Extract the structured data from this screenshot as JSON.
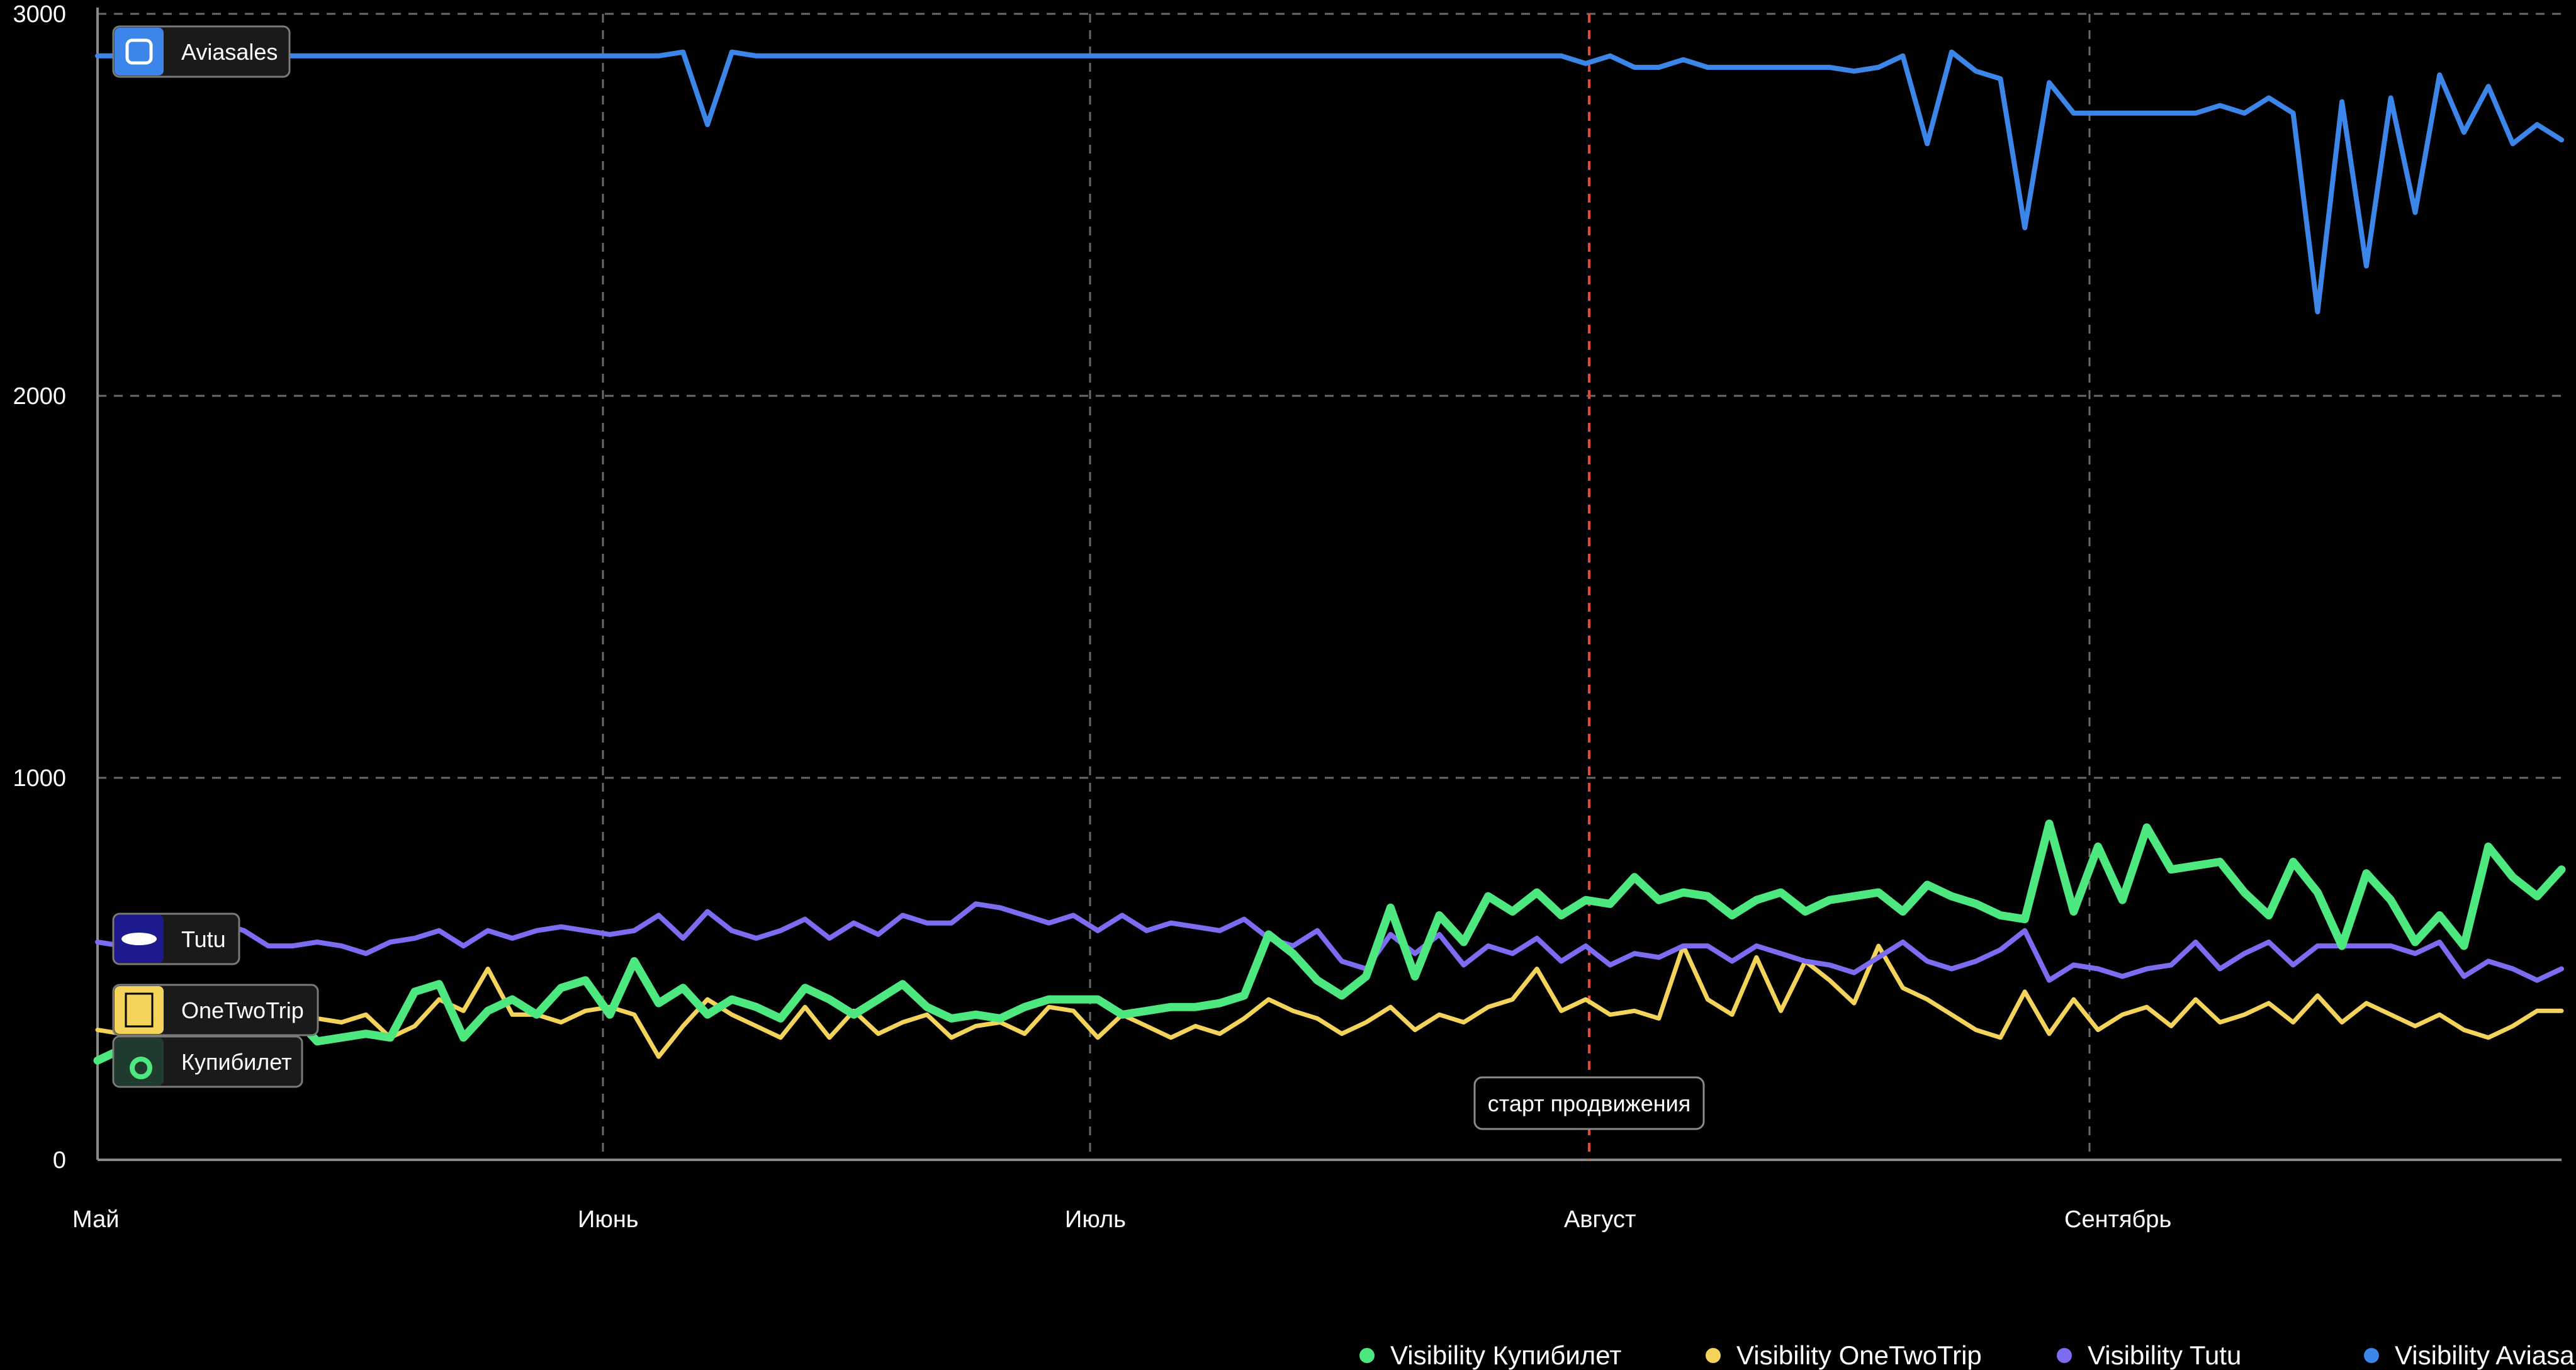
{
  "chart_data": {
    "type": "line",
    "x_axis_type": "date",
    "x_labels": [
      "Май",
      "Июнь",
      "Июль",
      "Август",
      "Сентябрь"
    ],
    "ylim": [
      0,
      3000
    ],
    "y_ticks": [
      0,
      1000,
      2000,
      3000
    ],
    "grid": true,
    "legend_position": "bottom-right",
    "annotation": {
      "label": "старт продвижения",
      "x_label": "Август",
      "color": "#e5463a"
    },
    "series": [
      {
        "name": "Visibility Купибилет",
        "tag_label": "Купибилет",
        "icon": "kupibilet-logo-icon",
        "color": "#4de87f",
        "values": [
          260,
          290,
          270,
          300,
          280,
          330,
          310,
          340,
          380,
          310,
          320,
          330,
          320,
          440,
          460,
          320,
          390,
          420,
          380,
          450,
          470,
          380,
          520,
          410,
          450,
          380,
          420,
          400,
          370,
          450,
          420,
          380,
          420,
          460,
          400,
          370,
          380,
          370,
          400,
          420,
          420,
          420,
          380,
          390,
          400,
          400,
          410,
          430,
          590,
          540,
          470,
          430,
          480,
          660,
          480,
          640,
          570,
          690,
          650,
          700,
          640,
          680,
          670,
          740,
          680,
          700,
          690,
          640,
          680,
          700,
          650,
          680,
          690,
          700,
          650,
          720,
          690,
          670,
          640,
          630,
          880,
          650,
          820,
          680,
          870,
          760,
          770,
          780,
          700,
          640,
          780,
          700,
          560,
          750,
          680,
          570,
          640,
          560,
          820,
          740,
          690,
          760
        ]
      },
      {
        "name": "Visibility OneTwoTrip",
        "tag_label": "OneTwoTrip",
        "icon": "onetwotrip-logo-icon",
        "color": "#f3d35a",
        "values": [
          340,
          330,
          360,
          350,
          340,
          360,
          350,
          330,
          360,
          370,
          360,
          380,
          320,
          350,
          420,
          390,
          500,
          380,
          380,
          360,
          390,
          400,
          380,
          270,
          350,
          420,
          380,
          350,
          320,
          400,
          320,
          390,
          330,
          360,
          380,
          320,
          350,
          360,
          330,
          400,
          390,
          320,
          380,
          350,
          320,
          350,
          330,
          370,
          420,
          390,
          370,
          330,
          360,
          400,
          340,
          380,
          360,
          400,
          420,
          500,
          390,
          420,
          380,
          390,
          370,
          560,
          420,
          380,
          530,
          390,
          520,
          470,
          410,
          560,
          450,
          420,
          380,
          340,
          320,
          440,
          330,
          420,
          340,
          380,
          400,
          350,
          420,
          360,
          380,
          410,
          360,
          430,
          360,
          410,
          380,
          350,
          380,
          340,
          320,
          350,
          390,
          390
        ]
      },
      {
        "name": "Visibility Tutu",
        "tag_label": "Tutu",
        "icon": "tutu-logo-icon",
        "color": "#7c6cf2",
        "values": [
          570,
          560,
          580,
          600,
          590,
          620,
          600,
          560,
          560,
          570,
          560,
          540,
          570,
          580,
          600,
          560,
          600,
          580,
          600,
          610,
          600,
          590,
          600,
          640,
          580,
          650,
          600,
          580,
          600,
          630,
          580,
          620,
          590,
          640,
          620,
          620,
          670,
          660,
          640,
          620,
          640,
          600,
          640,
          600,
          620,
          610,
          600,
          630,
          580,
          560,
          600,
          520,
          500,
          590,
          540,
          590,
          510,
          560,
          540,
          580,
          520,
          560,
          510,
          540,
          530,
          560,
          560,
          520,
          560,
          540,
          520,
          510,
          490,
          530,
          570,
          520,
          500,
          520,
          550,
          600,
          470,
          510,
          500,
          480,
          500,
          510,
          570,
          500,
          540,
          570,
          510,
          560,
          560,
          560,
          560,
          540,
          570,
          480,
          520,
          500,
          470,
          500
        ]
      },
      {
        "name": "Visibility Aviasales",
        "tag_label": "Aviasales",
        "icon": "aviasales-logo-icon",
        "color": "#3b86e8",
        "values": [
          2890,
          2890,
          2890,
          2890,
          2890,
          2890,
          2890,
          2890,
          2890,
          2890,
          2890,
          2890,
          2890,
          2890,
          2890,
          2890,
          2890,
          2890,
          2890,
          2890,
          2890,
          2890,
          2890,
          2890,
          2900,
          2710,
          2900,
          2890,
          2890,
          2890,
          2890,
          2890,
          2890,
          2890,
          2890,
          2890,
          2890,
          2890,
          2890,
          2890,
          2890,
          2890,
          2890,
          2890,
          2890,
          2890,
          2890,
          2890,
          2890,
          2890,
          2890,
          2890,
          2890,
          2890,
          2890,
          2890,
          2890,
          2890,
          2890,
          2890,
          2890,
          2870,
          2890,
          2860,
          2860,
          2880,
          2860,
          2860,
          2860,
          2860,
          2860,
          2860,
          2850,
          2860,
          2890,
          2660,
          2900,
          2850,
          2830,
          2440,
          2820,
          2740,
          2740,
          2740,
          2740,
          2740,
          2740,
          2760,
          2740,
          2780,
          2740,
          2220,
          2770,
          2340,
          2780,
          2480,
          2840,
          2690,
          2810,
          2660,
          2710,
          2670
        ]
      }
    ]
  }
}
